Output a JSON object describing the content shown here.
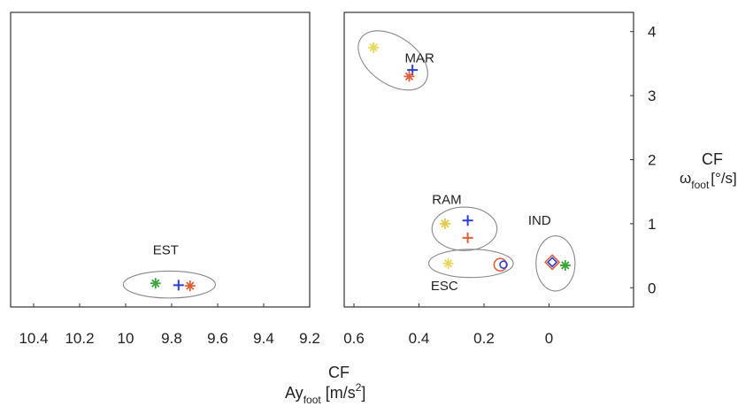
{
  "chart_data": [
    {
      "type": "scatter",
      "panel": "left",
      "xlim": [
        10.5,
        9.2
      ],
      "x_reversed": true,
      "ylim": [
        -0.3,
        4.3
      ],
      "xticks": [
        10.4,
        10.2,
        10,
        9.8,
        9.6,
        9.4,
        9.2
      ],
      "xtick_labels": [
        "10.4",
        "10.2",
        "10",
        "9.8",
        "9.6",
        "9.4",
        "9.2"
      ],
      "grid": false,
      "clusters": [
        {
          "label": "EST",
          "ellipse": {
            "cx": 9.81,
            "cy": 0.05,
            "rx": 0.2,
            "ry": 0.21
          },
          "points": [
            {
              "x": 9.87,
              "y": 0.07,
              "marker": "star",
              "color": "#3aa63a"
            },
            {
              "x": 9.77,
              "y": 0.04,
              "marker": "plus",
              "color": "#2b3fd6"
            },
            {
              "x": 9.72,
              "y": 0.03,
              "marker": "star",
              "color": "#e0603a"
            }
          ]
        }
      ]
    },
    {
      "type": "scatter",
      "panel": "right",
      "xlim": [
        0.63,
        -0.26
      ],
      "x_reversed": true,
      "ylim": [
        -0.3,
        4.3
      ],
      "xticks": [
        0.6,
        0.4,
        0.2,
        0
      ],
      "xtick_labels": [
        "0.6",
        "0.4",
        "0.2",
        "0"
      ],
      "yticks": [
        0,
        1,
        2,
        3,
        4
      ],
      "ytick_labels": [
        "0",
        "1",
        "2",
        "3",
        "4"
      ],
      "grid": false,
      "clusters": [
        {
          "label": "MAR",
          "ellipse": {
            "cx": 0.48,
            "cy": 3.55,
            "rx": 0.12,
            "ry": 0.37,
            "angle": 35
          },
          "points": [
            {
              "x": 0.54,
              "y": 3.75,
              "marker": "star",
              "color": "#e8d860"
            },
            {
              "x": 0.42,
              "y": 3.4,
              "marker": "plus",
              "color": "#2b3fd6"
            },
            {
              "x": 0.43,
              "y": 3.3,
              "marker": "star",
              "color": "#e0603a"
            }
          ]
        },
        {
          "label": "RAM",
          "ellipse": {
            "cx": 0.26,
            "cy": 0.92,
            "rx": 0.1,
            "ry": 0.34
          },
          "points": [
            {
              "x": 0.32,
              "y": 1.0,
              "marker": "star",
              "color": "#e8c84a"
            },
            {
              "x": 0.25,
              "y": 1.05,
              "marker": "plus",
              "color": "#2b3fd6"
            },
            {
              "x": 0.25,
              "y": 0.78,
              "marker": "plus",
              "color": "#e0603a"
            }
          ]
        },
        {
          "label": "ESC",
          "ellipse": {
            "cx": 0.24,
            "cy": 0.38,
            "rx": 0.13,
            "ry": 0.22
          },
          "points": [
            {
              "x": 0.31,
              "y": 0.38,
              "marker": "star",
              "color": "#e8d860"
            },
            {
              "x": 0.15,
              "y": 0.36,
              "marker": "circle",
              "color": "#e0603a"
            },
            {
              "x": 0.14,
              "y": 0.36,
              "marker": "circle",
              "color": "#2b3fd6"
            }
          ]
        },
        {
          "label": "IND",
          "ellipse": {
            "cx": -0.02,
            "cy": 0.38,
            "rx": 0.06,
            "ry": 0.43
          },
          "points": [
            {
              "x": -0.01,
              "y": 0.4,
              "marker": "diamond",
              "color": "#e0603a"
            },
            {
              "x": -0.01,
              "y": 0.4,
              "marker": "diamond",
              "color": "#2b3fd6"
            },
            {
              "x": -0.05,
              "y": 0.35,
              "marker": "star",
              "color": "#3aa63a"
            }
          ]
        }
      ]
    }
  ],
  "xlabel": {
    "top": "CF",
    "main": "Ay",
    "sub": "foot",
    "unit_pre": " [m/s",
    "unit_sup": "2",
    "unit_post": "]"
  },
  "ylabel": {
    "top": "CF",
    "main": "ω",
    "sub": "foot",
    "unit": "[°/s]"
  }
}
